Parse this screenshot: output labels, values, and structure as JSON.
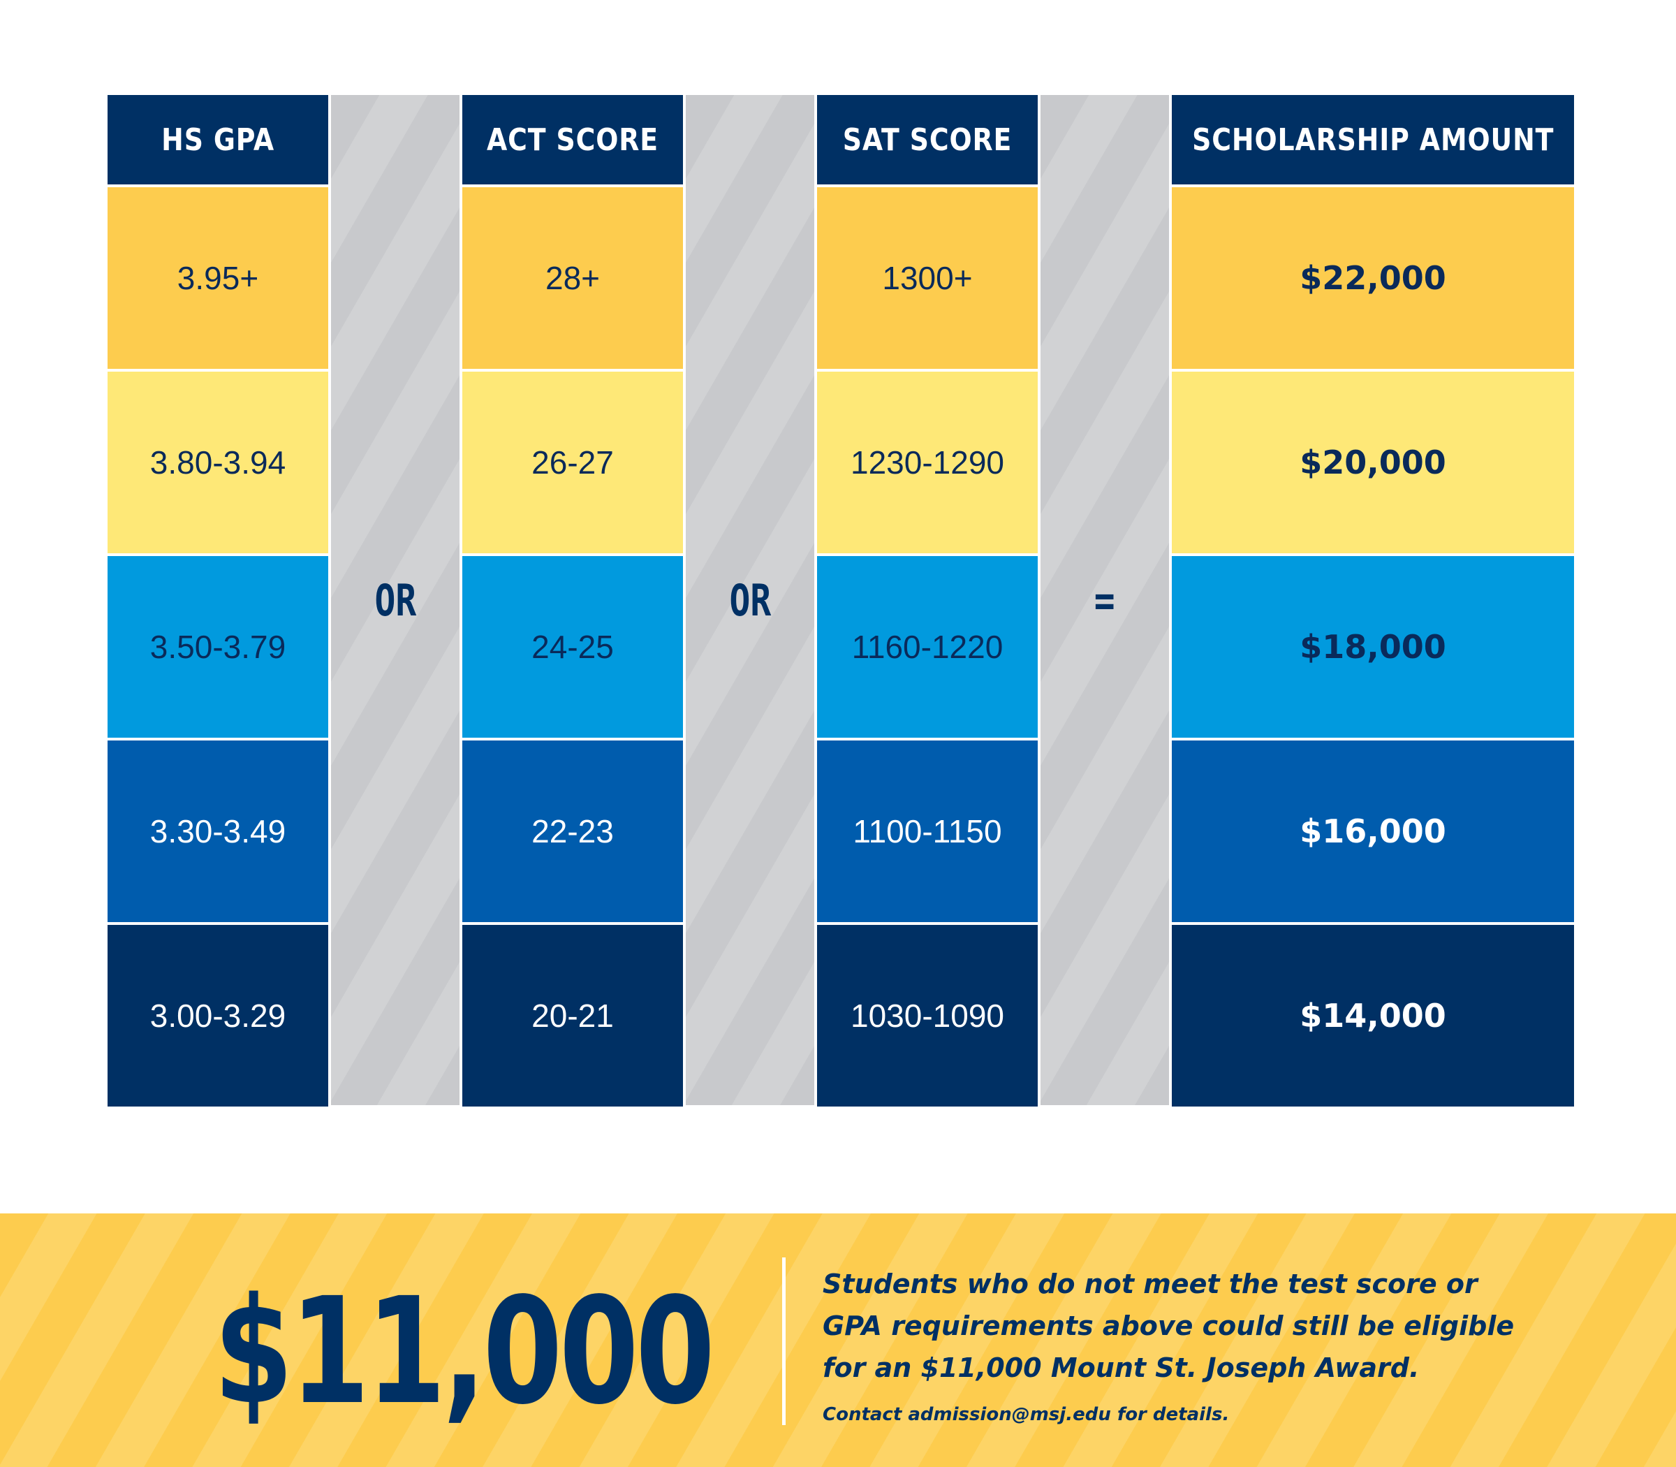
{
  "table": {
    "headers": {
      "gpa": "HS GPA",
      "act": "ACT SCORE",
      "sat": "SAT SCORE",
      "amount": "SCHOLARSHIP AMOUNT"
    },
    "separators": {
      "or1": "OR",
      "or2": "OR",
      "equals": "="
    },
    "rows": [
      {
        "gpa": "3.95+",
        "act": "28+",
        "sat": "1300+",
        "amount": "$22,000"
      },
      {
        "gpa": "3.80-3.94",
        "act": "26-27",
        "sat": "1230-1290",
        "amount": "$20,000"
      },
      {
        "gpa": "3.50-3.79",
        "act": "24-25",
        "sat": "1160-1220",
        "amount": "$18,000"
      },
      {
        "gpa": "3.30-3.49",
        "act": "22-23",
        "sat": "1100-1150",
        "amount": "$16,000"
      },
      {
        "gpa": "3.00-3.29",
        "act": "20-21",
        "sat": "1030-1090",
        "amount": "$14,000"
      }
    ],
    "row_colors": [
      "#fdcc4e",
      "#fee877",
      "#019ade",
      "#005cad",
      "#003064"
    ]
  },
  "banner": {
    "amount": "$11,000",
    "note": "Students who do not meet the test score or GPA requirements above could still be eligible for an $11,000 Mount St. Joseph Award.",
    "contact": "Contact admission@msj.edu for details."
  },
  "colors": {
    "navy": "#003064",
    "gold": "#fdcc4e",
    "gray": "#c8c9cc"
  }
}
